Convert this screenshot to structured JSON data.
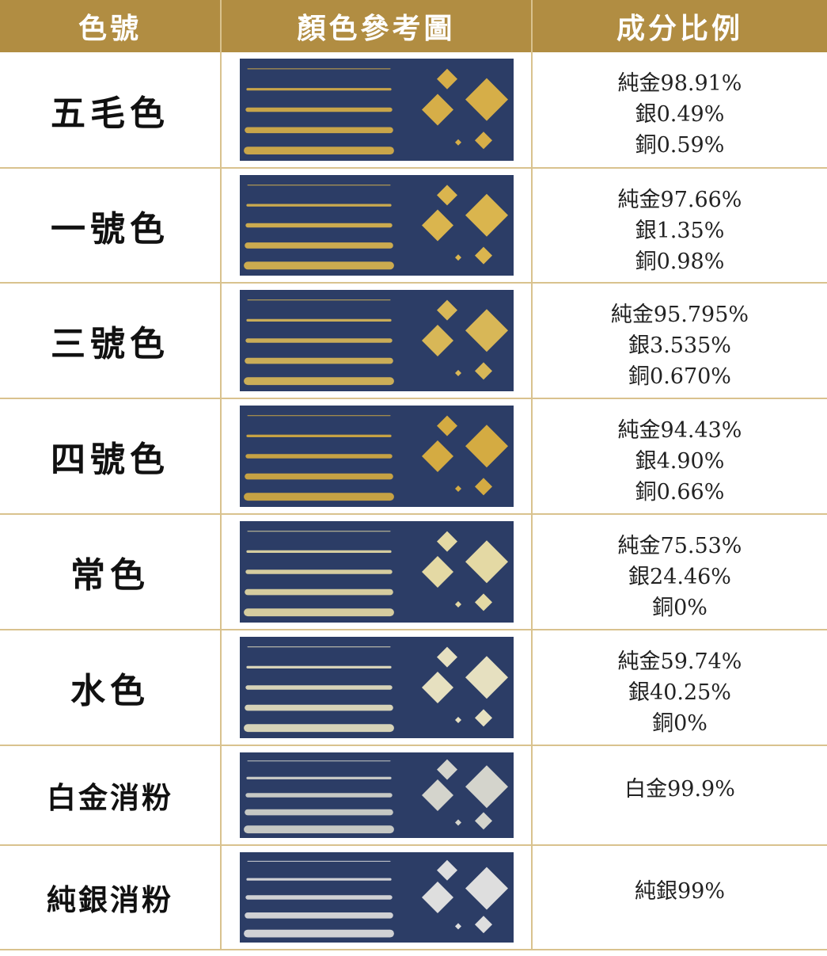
{
  "table": {
    "header": [
      "色號",
      "顏色參考圖",
      "成分比例"
    ],
    "rows": [
      {
        "name": "五毛色",
        "composition": [
          "純金98.91%",
          "銀0.49%",
          "銅0.59%"
        ]
      },
      {
        "name": "一號色",
        "composition": [
          "純金97.66%",
          "銀1.35%",
          "銅0.98%"
        ]
      },
      {
        "name": "三號色",
        "composition": [
          "純金95.795%",
          "銀3.535%",
          "銅0.670%"
        ]
      },
      {
        "name": "四號色",
        "composition": [
          "純金94.43%",
          "銀4.90%",
          "銅0.66%"
        ]
      },
      {
        "name": "常色",
        "composition": [
          "純金75.53%",
          "銀24.46%",
          "銅0%"
        ]
      },
      {
        "name": "水色",
        "composition": [
          "純金59.74%",
          "銀40.25%",
          "銅0%"
        ]
      },
      {
        "name": "白金消粉",
        "composition": [
          "白金99.9%"
        ]
      },
      {
        "name": "純銀消粉",
        "composition": [
          "純銀99%"
        ]
      }
    ]
  }
}
